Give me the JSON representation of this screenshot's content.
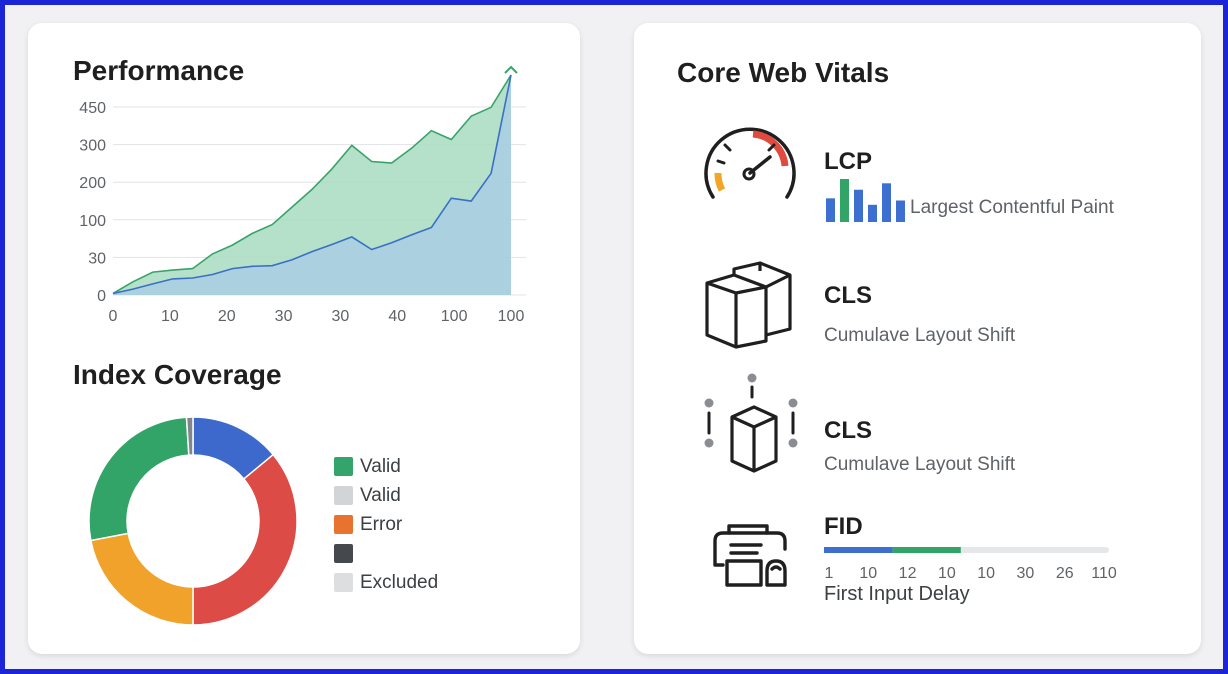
{
  "performance": {
    "title": "Performance",
    "chart_data": {
      "type": "area",
      "x_ticks": [
        "0",
        "10",
        "20",
        "30",
        "30",
        "40",
        "100",
        "100"
      ],
      "y_ticks": [
        "0",
        "30",
        "100",
        "200",
        "300",
        "450"
      ],
      "series": [
        {
          "color": "#a8dcc1",
          "line": "#3aa36a",
          "values": [
            0.05,
            0.45,
            0.78,
            0.85,
            0.9,
            1.4,
            1.7,
            2.1,
            2.4,
            3.0,
            3.6,
            4.3,
            5.1,
            4.55,
            4.5,
            5.0,
            5.6,
            5.3,
            6.1,
            6.4,
            7.5
          ]
        },
        {
          "color": "#a9cde4",
          "line": "#3a70c4",
          "values": [
            0.05,
            0.2,
            0.38,
            0.55,
            0.58,
            0.7,
            0.9,
            0.98,
            1.0,
            1.2,
            1.48,
            1.72,
            1.98,
            1.55,
            1.78,
            2.05,
            2.3,
            3.3,
            3.2,
            4.15,
            7.5
          ]
        }
      ]
    }
  },
  "index_coverage": {
    "title": "Index Coverage",
    "chart_data": {
      "type": "pie",
      "slices": [
        {
          "value": 14,
          "color": "#3d68cc"
        },
        {
          "value": 36,
          "color": "#dc4b45"
        },
        {
          "value": 22,
          "color": "#f1a22b"
        },
        {
          "value": 27,
          "color": "#32a467"
        },
        {
          "value": 1,
          "color": "#80868b"
        }
      ]
    },
    "legend": [
      {
        "label": "Valid",
        "color": "#33a46b"
      },
      {
        "label": "Valid",
        "color": "#d2d4d6"
      },
      {
        "label": "Error",
        "color": "#e8722f"
      },
      {
        "label": "",
        "color": "#45494e"
      },
      {
        "label": "Excluded",
        "color": "#dcdee0"
      }
    ]
  },
  "core_web_vitals": {
    "title": "Core Web Vitals",
    "lcp": {
      "abbr": "LCP",
      "name": "Largest Contentful Paint",
      "icon": "gauge-icon",
      "bars": [
        {
          "value": 0.55,
          "color": "#3d6fd0"
        },
        {
          "value": 1.0,
          "color": "#32a467"
        },
        {
          "value": 0.75,
          "color": "#3d6fd0"
        },
        {
          "value": 0.4,
          "color": "#3d6fd0"
        },
        {
          "value": 0.9,
          "color": "#3d6fd0"
        },
        {
          "value": 0.5,
          "color": "#3d6fd0"
        }
      ]
    },
    "cls_1": {
      "abbr": "CLS",
      "name": "Cumulave Layout Shift",
      "icon": "cubes-icon"
    },
    "cls_2": {
      "abbr": "CLS",
      "name": "Cumulave Layout Shift",
      "icon": "cube-selection-icon"
    },
    "fid": {
      "abbr": "FID",
      "name": "First Input Delay",
      "icon": "printer-icon",
      "progress": 0.48,
      "ticks": [
        "1",
        "10",
        "12",
        "10",
        "10",
        "30",
        "26",
        "110"
      ]
    }
  }
}
